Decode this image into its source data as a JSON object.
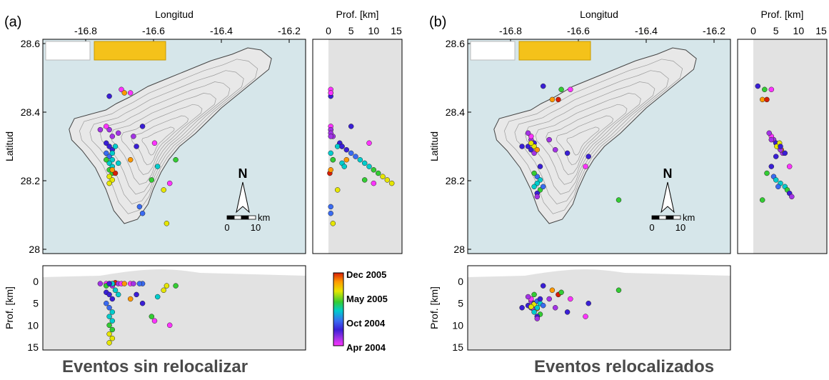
{
  "colors": {
    "sea": "#d6e6ea",
    "land": "#e8e8e8",
    "section_land": "#e2e2e2",
    "contour": "#9a9a9a",
    "colorbar": [
      "#d81e05",
      "#ff9900",
      "#e6e600",
      "#33cc33",
      "#00cccc",
      "#3a6bf2",
      "#3a1fd6",
      "#a333e6",
      "#ff33ff"
    ]
  },
  "panels": [
    {
      "tag": "(a)",
      "caption": "Eventos sin relocalizar",
      "map": {
        "xlabel": "Longitud",
        "ylabel": "Latitud",
        "xticks": [
          "-16.8",
          "-16.6",
          "-16.4",
          "-16.2"
        ],
        "yticks": [
          "28.6",
          "28.4",
          "28.2",
          "28"
        ],
        "north_label": "N",
        "scale_unit": "km",
        "scale_ticks": [
          "0",
          "10"
        ]
      },
      "depth_side": {
        "xlabel": "Prof. [km]",
        "xticks": [
          "0",
          "5",
          "10",
          "15"
        ]
      },
      "depth_bottom": {
        "ylabel": "Prof. [km]",
        "yticks": [
          "0",
          "5",
          "10",
          "15"
        ]
      },
      "colorbar": {
        "labels": [
          "Dec 2005",
          "May 2005",
          "Oct 2004",
          "Apr 2004"
        ]
      }
    },
    {
      "tag": "(b)",
      "caption": "Eventos relocalizados",
      "map": {
        "xlabel": "Longitud",
        "ylabel": "Latitud",
        "xticks": [
          "-16.8",
          "-16.6",
          "-16.4",
          "-16.2"
        ],
        "yticks": [
          "28.6",
          "28.4",
          "28.2",
          "28"
        ],
        "north_label": "N",
        "scale_unit": "km",
        "scale_ticks": [
          "0",
          "10"
        ]
      },
      "depth_side": {
        "xlabel": "Prof. [km]",
        "xticks": [
          "0",
          "5",
          "10",
          "15"
        ]
      },
      "depth_bottom": {
        "ylabel": "Prof. [km]",
        "yticks": [
          "0",
          "5",
          "10",
          "15"
        ]
      }
    }
  ],
  "chart_data": [
    {
      "type": "scatter",
      "panel": "(a)",
      "xlabel": "Longitud",
      "ylabel": "Latitud",
      "xlim": [
        -16.93,
        -16.06
      ],
      "ylim": [
        27.98,
        28.62
      ],
      "side_depth_xlim": [
        0,
        15
      ],
      "bottom_depth_ylim": [
        0,
        15
      ],
      "color_scale": [
        "Apr 2004",
        "Oct 2004",
        "May 2005",
        "Dec 2005"
      ],
      "events": [
        {
          "lon": -16.71,
          "lat": 28.35,
          "depth": 0.5,
          "t": 0.1
        },
        {
          "lon": -16.7,
          "lat": 28.33,
          "depth": 1.0,
          "t": 0.15
        },
        {
          "lon": -16.72,
          "lat": 28.31,
          "depth": 2.5,
          "t": 0.25
        },
        {
          "lon": -16.71,
          "lat": 28.3,
          "depth": 3.0,
          "t": 0.2
        },
        {
          "lon": -16.7,
          "lat": 28.29,
          "depth": 4.0,
          "t": 0.3
        },
        {
          "lon": -16.72,
          "lat": 28.28,
          "depth": 5.0,
          "t": 0.35
        },
        {
          "lon": -16.71,
          "lat": 28.27,
          "depth": 6.0,
          "t": 0.4
        },
        {
          "lon": -16.7,
          "lat": 28.26,
          "depth": 7.0,
          "t": 0.45
        },
        {
          "lon": -16.71,
          "lat": 28.25,
          "depth": 8.0,
          "t": 0.5
        },
        {
          "lon": -16.7,
          "lat": 28.24,
          "depth": 9.0,
          "t": 0.55
        },
        {
          "lon": -16.71,
          "lat": 28.23,
          "depth": 10.0,
          "t": 0.6
        },
        {
          "lon": -16.7,
          "lat": 28.22,
          "depth": 11.0,
          "t": 0.65
        },
        {
          "lon": -16.71,
          "lat": 28.21,
          "depth": 12.0,
          "t": 0.7
        },
        {
          "lon": -16.7,
          "lat": 28.2,
          "depth": 13.0,
          "t": 0.75
        },
        {
          "lon": -16.71,
          "lat": 28.19,
          "depth": 14.0,
          "t": 0.8
        },
        {
          "lon": -16.69,
          "lat": 28.22,
          "depth": 0.3,
          "t": 0.95
        },
        {
          "lon": -16.7,
          "lat": 28.23,
          "depth": 0.5,
          "t": 0.9
        },
        {
          "lon": -16.72,
          "lat": 28.36,
          "depth": 0.5,
          "t": 0.05
        },
        {
          "lon": -16.74,
          "lat": 28.35,
          "depth": 0.5,
          "t": 0.1
        },
        {
          "lon": -16.68,
          "lat": 28.34,
          "depth": 0.5,
          "t": 0.08
        },
        {
          "lon": -16.69,
          "lat": 28.3,
          "depth": 2.0,
          "t": 0.45
        },
        {
          "lon": -16.7,
          "lat": 28.28,
          "depth": 0.5,
          "t": 0.55
        },
        {
          "lon": -16.72,
          "lat": 28.26,
          "depth": 1.0,
          "t": 0.6
        },
        {
          "lon": -16.68,
          "lat": 28.25,
          "depth": 3.0,
          "t": 0.5
        },
        {
          "lon": -16.71,
          "lat": 28.45,
          "depth": 0.5,
          "t": 0.2
        },
        {
          "lon": -16.67,
          "lat": 28.47,
          "depth": 0.5,
          "t": 0.02
        },
        {
          "lon": -16.66,
          "lat": 28.46,
          "depth": 0.5,
          "t": 0.9
        },
        {
          "lon": -16.64,
          "lat": 28.46,
          "depth": 0.5,
          "t": 0.0
        },
        {
          "lon": -16.63,
          "lat": 28.33,
          "depth": 0.5,
          "t": 0.15
        },
        {
          "lon": -16.62,
          "lat": 28.3,
          "depth": 3.0,
          "t": 0.3
        },
        {
          "lon": -16.56,
          "lat": 28.31,
          "depth": 9.0,
          "t": 0.05
        },
        {
          "lon": -16.55,
          "lat": 28.24,
          "depth": 3.5,
          "t": 0.55
        },
        {
          "lon": -16.57,
          "lat": 28.2,
          "depth": 8.0,
          "t": 0.6
        },
        {
          "lon": -16.53,
          "lat": 28.17,
          "depth": 2.0,
          "t": 0.8
        },
        {
          "lon": -16.51,
          "lat": 28.19,
          "depth": 10.0,
          "t": 0.0
        },
        {
          "lon": -16.49,
          "lat": 28.26,
          "depth": 1.0,
          "t": 0.6
        },
        {
          "lon": -16.6,
          "lat": 28.1,
          "depth": 0.5,
          "t": 0.4
        },
        {
          "lon": -16.61,
          "lat": 28.12,
          "depth": 0.5,
          "t": 0.35
        },
        {
          "lon": -16.52,
          "lat": 28.07,
          "depth": 1.0,
          "t": 0.7
        },
        {
          "lon": -16.6,
          "lat": 28.36,
          "depth": 5.0,
          "t": 0.2
        },
        {
          "lon": -16.64,
          "lat": 28.26,
          "depth": 4.0,
          "t": 0.9
        }
      ]
    },
    {
      "type": "scatter",
      "panel": "(b)",
      "xlabel": "Longitud",
      "ylabel": "Latitud",
      "xlim": [
        -16.93,
        -16.06
      ],
      "ylim": [
        27.98,
        28.62
      ],
      "side_depth_xlim": [
        0,
        15
      ],
      "bottom_depth_ylim": [
        0,
        15
      ],
      "color_scale": [
        "Apr 2004",
        "Oct 2004",
        "May 2005",
        "Dec 2005"
      ],
      "events": [
        {
          "lon": -16.72,
          "lat": 28.32,
          "depth": 4.5,
          "t": 0.1
        },
        {
          "lon": -16.71,
          "lat": 28.31,
          "depth": 5.0,
          "t": 0.2
        },
        {
          "lon": -16.73,
          "lat": 28.3,
          "depth": 5.5,
          "t": 0.3
        },
        {
          "lon": -16.72,
          "lat": 28.29,
          "depth": 6.0,
          "t": 0.25
        },
        {
          "lon": -16.71,
          "lat": 28.28,
          "depth": 6.5,
          "t": 0.15
        },
        {
          "lon": -16.72,
          "lat": 28.33,
          "depth": 4.0,
          "t": 0.05
        },
        {
          "lon": -16.73,
          "lat": 28.34,
          "depth": 3.5,
          "t": 0.08
        },
        {
          "lon": -16.71,
          "lat": 28.3,
          "depth": 5.2,
          "t": 0.7
        },
        {
          "lon": -16.72,
          "lat": 28.31,
          "depth": 5.8,
          "t": 0.8
        },
        {
          "lon": -16.7,
          "lat": 28.29,
          "depth": 6.2,
          "t": 0.9
        },
        {
          "lon": -16.7,
          "lat": 28.21,
          "depth": 4.5,
          "t": 0.4
        },
        {
          "lon": -16.69,
          "lat": 28.2,
          "depth": 5.0,
          "t": 0.45
        },
        {
          "lon": -16.7,
          "lat": 28.19,
          "depth": 6.0,
          "t": 0.5
        },
        {
          "lon": -16.71,
          "lat": 28.18,
          "depth": 7.0,
          "t": 0.55
        },
        {
          "lon": -16.69,
          "lat": 28.17,
          "depth": 7.5,
          "t": 0.6
        },
        {
          "lon": -16.7,
          "lat": 28.16,
          "depth": 8.0,
          "t": 0.2
        },
        {
          "lon": -16.68,
          "lat": 28.18,
          "depth": 5.5,
          "t": 0.35
        },
        {
          "lon": -16.7,
          "lat": 28.15,
          "depth": 8.5,
          "t": 0.1
        },
        {
          "lon": -16.71,
          "lat": 28.22,
          "depth": 3.0,
          "t": 0.65
        },
        {
          "lon": -16.69,
          "lat": 28.24,
          "depth": 4.0,
          "t": 0.3
        },
        {
          "lon": -16.68,
          "lat": 28.48,
          "depth": 1.0,
          "t": 0.3
        },
        {
          "lon": -16.65,
          "lat": 28.44,
          "depth": 2.0,
          "t": 0.82
        },
        {
          "lon": -16.63,
          "lat": 28.44,
          "depth": 3.0,
          "t": 1.0
        },
        {
          "lon": -16.62,
          "lat": 28.47,
          "depth": 2.5,
          "t": 0.62
        },
        {
          "lon": -16.59,
          "lat": 28.47,
          "depth": 4.0,
          "t": 0.0
        },
        {
          "lon": -16.64,
          "lat": 28.29,
          "depth": 6.0,
          "t": 0.1
        },
        {
          "lon": -16.6,
          "lat": 28.28,
          "depth": 7.0,
          "t": 0.25
        },
        {
          "lon": -16.54,
          "lat": 28.24,
          "depth": 8.0,
          "t": 0.02
        },
        {
          "lon": -16.53,
          "lat": 28.27,
          "depth": 5.0,
          "t": 0.3
        },
        {
          "lon": -16.43,
          "lat": 28.14,
          "depth": 2.0,
          "t": 0.58
        },
        {
          "lon": -16.66,
          "lat": 28.32,
          "depth": 4.0,
          "t": 0.15
        },
        {
          "lon": -16.75,
          "lat": 28.3,
          "depth": 6.0,
          "t": 0.2
        }
      ]
    }
  ]
}
